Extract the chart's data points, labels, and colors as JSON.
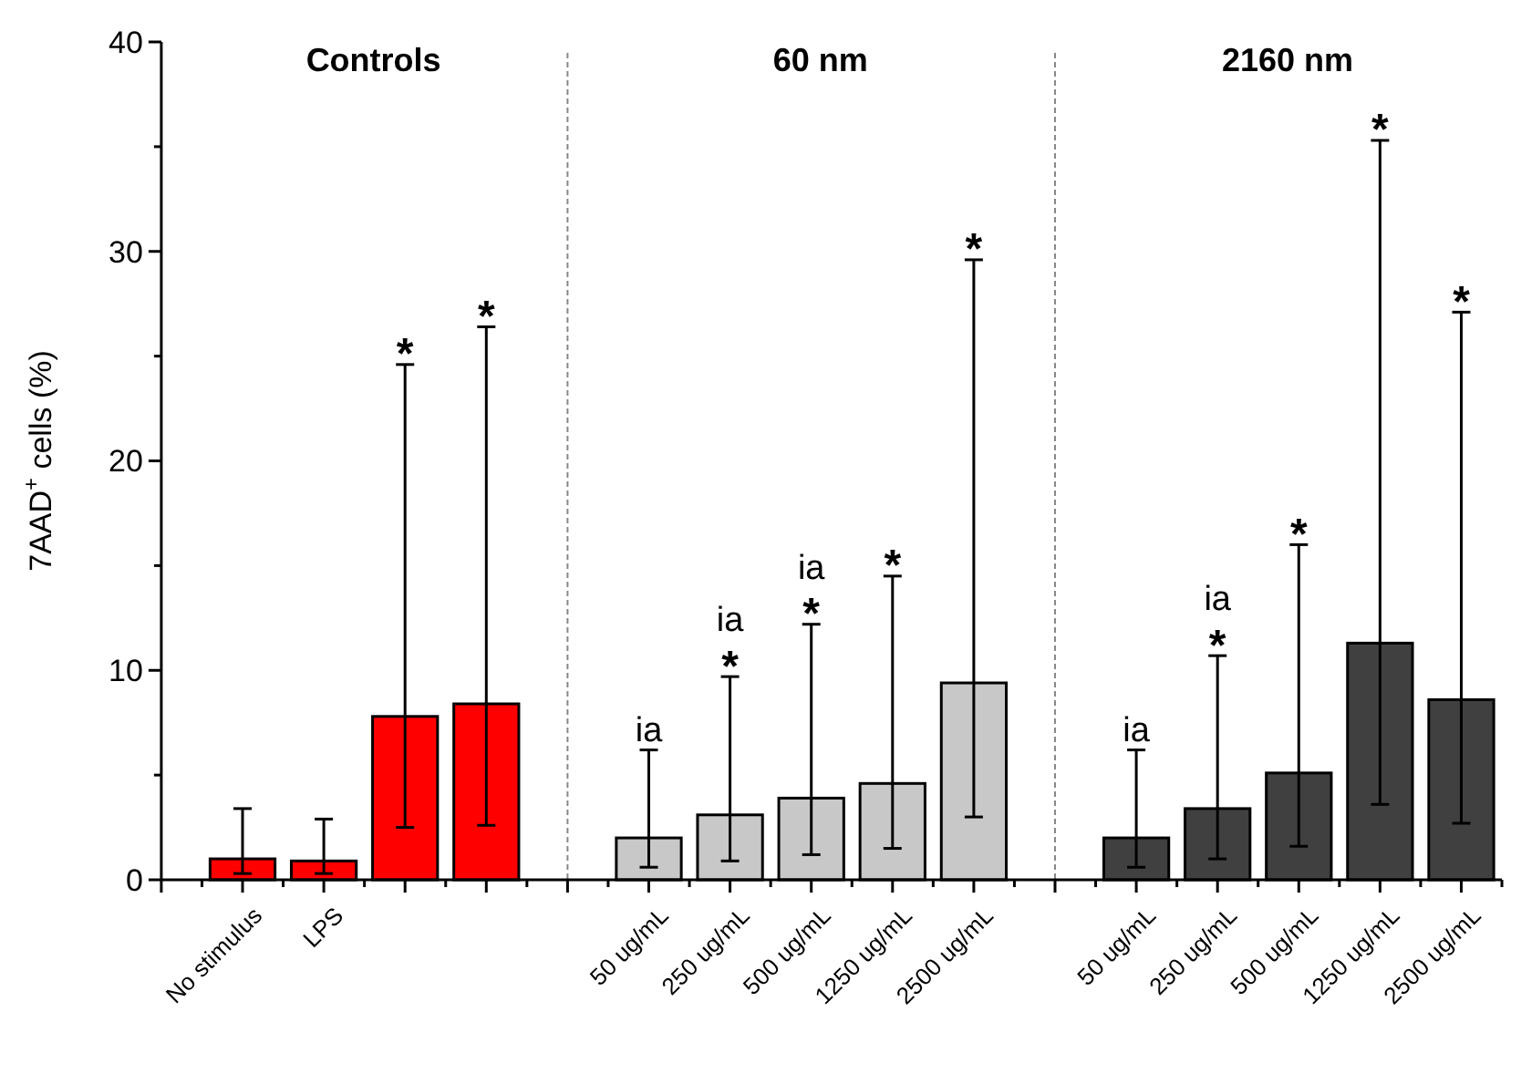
{
  "chart_data": {
    "type": "bar",
    "ylabel": "7AAD$^{+}$ cells (%)",
    "categories": [
      "No stimulus",
      "LPS",
      null,
      null,
      null,
      "50 ug/mL",
      "250 ug/mL",
      "500 ug/mL",
      "1250 ug/mL",
      "2500 ug/mL",
      null,
      "50 ug/mL",
      "250 ug/mL",
      "500 ug/mL",
      "1250 ug/mL",
      "2500 ug/mL"
    ],
    "values": [
      1.0,
      0.9,
      7.8,
      8.4,
      null,
      2.0,
      3.1,
      3.9,
      4.6,
      9.4,
      null,
      2.0,
      3.4,
      5.1,
      11.3,
      8.6
    ],
    "colors": [
      "#ff0000",
      "#ff0000",
      "#ff0000",
      "#ff0000",
      null,
      "#c8c8c8",
      "#c8c8c8",
      "#c8c8c8",
      "#c8c8c8",
      "#c8c8c8",
      null,
      "#404040",
      "#404040",
      "#404040",
      "#404040",
      "#404040"
    ],
    "errors": [
      [
        0.3,
        3.4
      ],
      [
        0.3,
        2.9
      ],
      [
        2.5,
        24.6
      ],
      [
        2.6,
        26.4
      ],
      null,
      [
        0.6,
        6.2
      ],
      [
        0.9,
        9.7
      ],
      [
        1.2,
        12.2
      ],
      [
        1.5,
        14.5
      ],
      [
        3.0,
        29.6
      ],
      null,
      [
        0.6,
        6.2
      ],
      [
        1.0,
        10.7
      ],
      [
        1.6,
        16.0
      ],
      [
        3.6,
        35.3
      ],
      [
        2.7,
        27.1
      ]
    ],
    "ylim": [
      0,
      40
    ],
    "yticks": [
      0,
      {
        "value": 5,
        "label": null
      },
      10,
      {
        "value": 15,
        "label": null
      },
      20,
      {
        "value": 25,
        "label": null
      },
      30,
      {
        "value": 35,
        "label": null
      },
      40
    ],
    "annotations": [
      "Controls",
      "60 nm",
      "2160 nm",
      {
        "text": "*",
        "y": 24.6
      },
      {
        "text": "*",
        "y": 26.4
      },
      {
        "text": "ia",
        "x": "50 ug/mL",
        "y": 6.2
      },
      {
        "text": "*",
        "x": "250 ug/mL",
        "y": 9.7
      },
      {
        "text": "ia",
        "x": "250 ug/mL",
        "y": 9.7
      },
      {
        "text": "*",
        "x": "500 ug/mL",
        "y": 12.2
      },
      {
        "text": "ia",
        "x": "500 ug/mL",
        "y": 12.2
      },
      {
        "text": "*",
        "x": "1250 ug/mL",
        "y": 14.5
      },
      {
        "text": "*",
        "x": "2500 ug/mL",
        "y": 29.6
      },
      {
        "text": "ia",
        "y": 6.2
      },
      {
        "text": "*",
        "y": 10.7
      },
      {
        "text": "ia",
        "y": 10.7
      },
      {
        "text": "*",
        "y": 16.0
      },
      {
        "text": "*",
        "y": 35.3
      },
      {
        "text": "*",
        "y": 27.1
      }
    ]
  }
}
